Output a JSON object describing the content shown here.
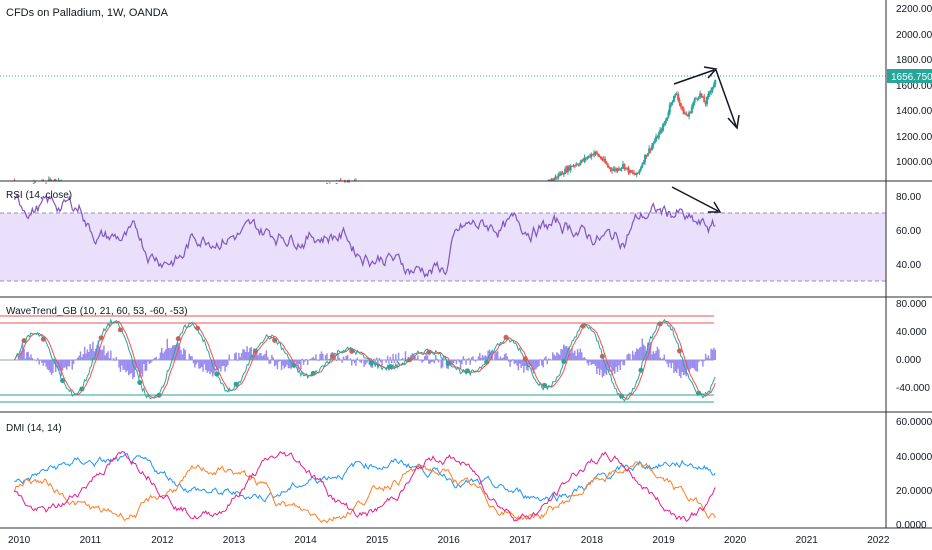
{
  "colors": {
    "up": "#26a69a",
    "down": "#ef5350",
    "rsi": "#7e57c2",
    "rsi_band": "#eae0fc",
    "wt1": "#26a69a",
    "wt2": "#ef5350",
    "wt_hist": "#9b8df0",
    "dmi_plus": "#2196f3",
    "dmi_minus": "#ff7f27",
    "adx": "#e91e8c",
    "last_price": "#26a69a",
    "last_price_line": "#26a69a"
  },
  "title": "CFDs on Palladium, 1W, OANDA",
  "last_price_label": "1656.750",
  "x_axis_labels": [
    "2010",
    "2011",
    "2012",
    "2013",
    "2014",
    "2015",
    "2016",
    "2017",
    "2018",
    "2019",
    "2020",
    "2021",
    "2022"
  ],
  "chart_data": [
    {
      "type": "candlestick",
      "name": "price",
      "title": "CFDs on Palladium, 1W, OANDA",
      "y_ticks": [
        "2200.000",
        "2000.000",
        "1800.000",
        "1600.000",
        "1400.000",
        "1200.000",
        "1000.000"
      ],
      "ylim": [
        700,
        2300
      ],
      "xlim": [
        2009.9,
        2022.1
      ],
      "last_price": 1656.75,
      "series_close": [
        [
          2017.45,
          880
        ],
        [
          2017.55,
          920
        ],
        [
          2017.65,
          960
        ],
        [
          2017.75,
          1000
        ],
        [
          2017.85,
          1020
        ],
        [
          2017.95,
          1060
        ],
        [
          2018.05,
          1100
        ],
        [
          2018.15,
          1050
        ],
        [
          2018.25,
          980
        ],
        [
          2018.35,
          960
        ],
        [
          2018.45,
          1000
        ],
        [
          2018.55,
          940
        ],
        [
          2018.65,
          920
        ],
        [
          2018.75,
          1060
        ],
        [
          2018.85,
          1150
        ],
        [
          2018.95,
          1240
        ],
        [
          2019.05,
          1350
        ],
        [
          2019.12,
          1500
        ],
        [
          2019.2,
          1560
        ],
        [
          2019.28,
          1420
        ],
        [
          2019.36,
          1380
        ],
        [
          2019.44,
          1500
        ],
        [
          2019.52,
          1560
        ],
        [
          2019.6,
          1480
        ],
        [
          2019.68,
          1600
        ],
        [
          2019.74,
          1656.75
        ]
      ],
      "annotations": [
        "arrow-up-to-high",
        "arrow-down-projection"
      ]
    },
    {
      "type": "line",
      "name": "rsi",
      "title": "RSI (14, close)",
      "y_ticks": [
        "80.00",
        "60.00",
        "40.00"
      ],
      "ylim": [
        25,
        90
      ],
      "bands": [
        30,
        70
      ]
    },
    {
      "type": "line",
      "name": "wavetrend",
      "title": "WaveTrend_GB (10, 21, 60, 53, -60, -53)",
      "y_ticks": [
        "80.000",
        "40.000",
        "0.000",
        "-40.000"
      ],
      "ylim": [
        -70,
        85
      ],
      "levels": [
        60,
        53,
        -60,
        -53,
        0
      ]
    },
    {
      "type": "line",
      "name": "dmi",
      "title": "DMI (14, 14)",
      "y_ticks": [
        "60.0000",
        "40.0000",
        "20.0000",
        "0.0000"
      ],
      "ylim": [
        0,
        65
      ],
      "series": [
        {
          "name": "+DI"
        },
        {
          "name": "-DI"
        },
        {
          "name": "ADX"
        }
      ]
    }
  ]
}
